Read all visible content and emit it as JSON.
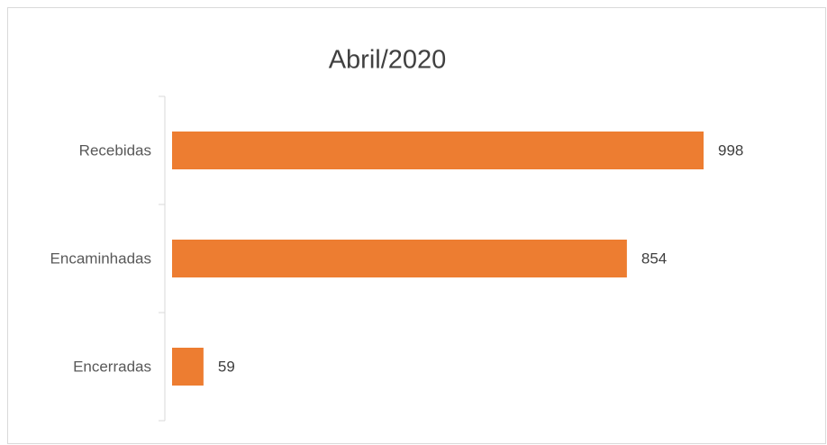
{
  "chart_data": {
    "type": "bar",
    "orientation": "horizontal",
    "title": "Abril/2020",
    "categories": [
      "Recebidas",
      "Encaminhadas",
      "Encerradas"
    ],
    "values": [
      998,
      854,
      59
    ],
    "color": "#ed7d31"
  }
}
